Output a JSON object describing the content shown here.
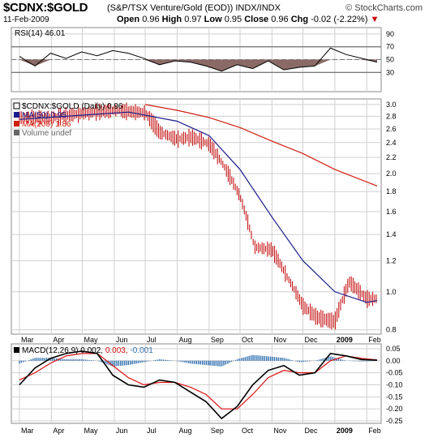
{
  "header": {
    "symbol": "$CDNX:$GOLD",
    "description": "(S&P/TSX Venture/Gold (EOD)) INDX/INDX",
    "site": "© StockCharts.com",
    "date": "11-Feb-2009",
    "open_label": "Open",
    "open": "0.96",
    "high_label": "High",
    "high": "0.97",
    "low_label": "Low",
    "low": "0.95",
    "close_label": "Close",
    "close": "0.96",
    "chg_label": "Chg",
    "chg": "-0.02 (-2.22%)",
    "chg_arrow": "▼"
  },
  "colors": {
    "price_bar": "#c00000",
    "ma50": "#1c1c8c",
    "ma200": "#d02010",
    "rsi_line": "#000000",
    "rsi_fill": "#8a6a66",
    "macd_line": "#000000",
    "signal_line": "#dd1111",
    "histogram": "#2f6fb0",
    "grid": "#d0d0d0"
  },
  "chart_data": [
    {
      "type": "line",
      "label": "RSI(14) 46.01",
      "ylim": [
        0,
        100
      ],
      "yticks": [
        30,
        50,
        70,
        90
      ],
      "levels": [
        30,
        70
      ],
      "x": [
        "Mar",
        "Mar",
        "Apr",
        "Apr",
        "May",
        "May",
        "Jun",
        "Jun",
        "Jul",
        "Jul",
        "Aug",
        "Aug",
        "Sep",
        "Sep",
        "Oct",
        "Oct",
        "Nov",
        "Nov",
        "Dec",
        "Dec",
        "Jan",
        "Jan",
        "Feb",
        "Feb"
      ],
      "values": [
        55,
        40,
        60,
        52,
        62,
        56,
        64,
        60,
        52,
        42,
        48,
        46,
        40,
        32,
        42,
        36,
        48,
        34,
        38,
        40,
        68,
        58,
        52,
        46
      ]
    },
    {
      "type": "line",
      "legend": [
        {
          "name": "$CDNX:$GOLD (Daily) 0.96"
        },
        {
          "name": "MA(50) 0.95"
        },
        {
          "name": "MA(200) 1.86"
        },
        {
          "name": "Volume undef"
        }
      ],
      "ylim": [
        0.78,
        3.1
      ],
      "scale": "log",
      "yticks": [
        0.8,
        1.0,
        1.2,
        1.4,
        1.6,
        1.8,
        2.0,
        2.2,
        2.4,
        2.6,
        2.8,
        3.0
      ],
      "x_labels": [
        "Mar",
        "Apr",
        "May",
        "Jun",
        "Jul",
        "Aug",
        "Sep",
        "Oct",
        "Nov",
        "Dec",
        "2009",
        "Feb"
      ],
      "price_keypoints": [
        {
          "x": "Mar 1",
          "y": 2.78
        },
        {
          "x": "Apr 1",
          "y": 2.78
        },
        {
          "x": "May 1",
          "y": 2.85
        },
        {
          "x": "Jun 1",
          "y": 2.9
        },
        {
          "x": "Jul 1",
          "y": 2.86
        },
        {
          "x": "Jul 15",
          "y": 2.55
        },
        {
          "x": "Aug 1",
          "y": 2.45
        },
        {
          "x": "Aug 15",
          "y": 2.48
        },
        {
          "x": "Sep 1",
          "y": 2.38
        },
        {
          "x": "Sep 15",
          "y": 2.1
        },
        {
          "x": "Oct 1",
          "y": 1.75
        },
        {
          "x": "Oct 15",
          "y": 1.3
        },
        {
          "x": "Nov 1",
          "y": 1.28
        },
        {
          "x": "Nov 15",
          "y": 1.1
        },
        {
          "x": "Dec 1",
          "y": 0.92
        },
        {
          "x": "Dec 15",
          "y": 0.86
        },
        {
          "x": "Jan 1",
          "y": 0.84
        },
        {
          "x": "Jan 15",
          "y": 1.06
        },
        {
          "x": "Feb 1",
          "y": 0.96
        },
        {
          "x": "Feb 11",
          "y": 0.96
        }
      ],
      "ma50_keypoints": [
        {
          "x": "Mar 1",
          "y": 2.75
        },
        {
          "x": "Jun 15",
          "y": 2.87
        },
        {
          "x": "Aug 1",
          "y": 2.72
        },
        {
          "x": "Sep 1",
          "y": 2.5
        },
        {
          "x": "Oct 1",
          "y": 2.05
        },
        {
          "x": "Nov 1",
          "y": 1.55
        },
        {
          "x": "Dec 1",
          "y": 1.2
        },
        {
          "x": "Jan 1",
          "y": 1.0
        },
        {
          "x": "Feb 1",
          "y": 0.94
        },
        {
          "x": "Feb 11",
          "y": 0.95
        }
      ],
      "ma200_keypoints": [
        {
          "x": "Jul 1",
          "y": 3.0
        },
        {
          "x": "Aug 1",
          "y": 2.9
        },
        {
          "x": "Sep 1",
          "y": 2.78
        },
        {
          "x": "Oct 1",
          "y": 2.62
        },
        {
          "x": "Nov 1",
          "y": 2.42
        },
        {
          "x": "Dec 1",
          "y": 2.25
        },
        {
          "x": "Jan 1",
          "y": 2.05
        },
        {
          "x": "Feb 11",
          "y": 1.86
        }
      ]
    },
    {
      "type": "line",
      "label_prefix": "MACD(12,26,9)",
      "label_macd": "0.002,",
      "label_signal": "0.003,",
      "label_hist": "-0.001",
      "ylim": [
        -0.26,
        0.07
      ],
      "yticks": [
        0.05,
        0.0,
        -0.05,
        -0.1,
        -0.15,
        -0.2,
        -0.25
      ],
      "x_labels": [
        "Mar",
        "Apr",
        "May",
        "Jun",
        "Jul",
        "Aug",
        "Sep",
        "Oct",
        "Nov",
        "Dec",
        "2009",
        "Feb"
      ],
      "macd": [
        -0.1,
        -0.03,
        0.01,
        0.03,
        0.04,
        0.03,
        -0.06,
        -0.1,
        -0.11,
        -0.08,
        -0.09,
        -0.13,
        -0.17,
        -0.24,
        -0.19,
        -0.1,
        -0.04,
        -0.02,
        -0.06,
        -0.05,
        0.03,
        0.02,
        0.005,
        0.002
      ],
      "signal": [
        -0.08,
        -0.05,
        -0.01,
        0.02,
        0.03,
        0.03,
        -0.02,
        -0.07,
        -0.1,
        -0.09,
        -0.09,
        -0.11,
        -0.14,
        -0.2,
        -0.2,
        -0.14,
        -0.07,
        -0.04,
        -0.05,
        -0.05,
        0.0,
        0.02,
        0.01,
        0.003
      ]
    }
  ]
}
